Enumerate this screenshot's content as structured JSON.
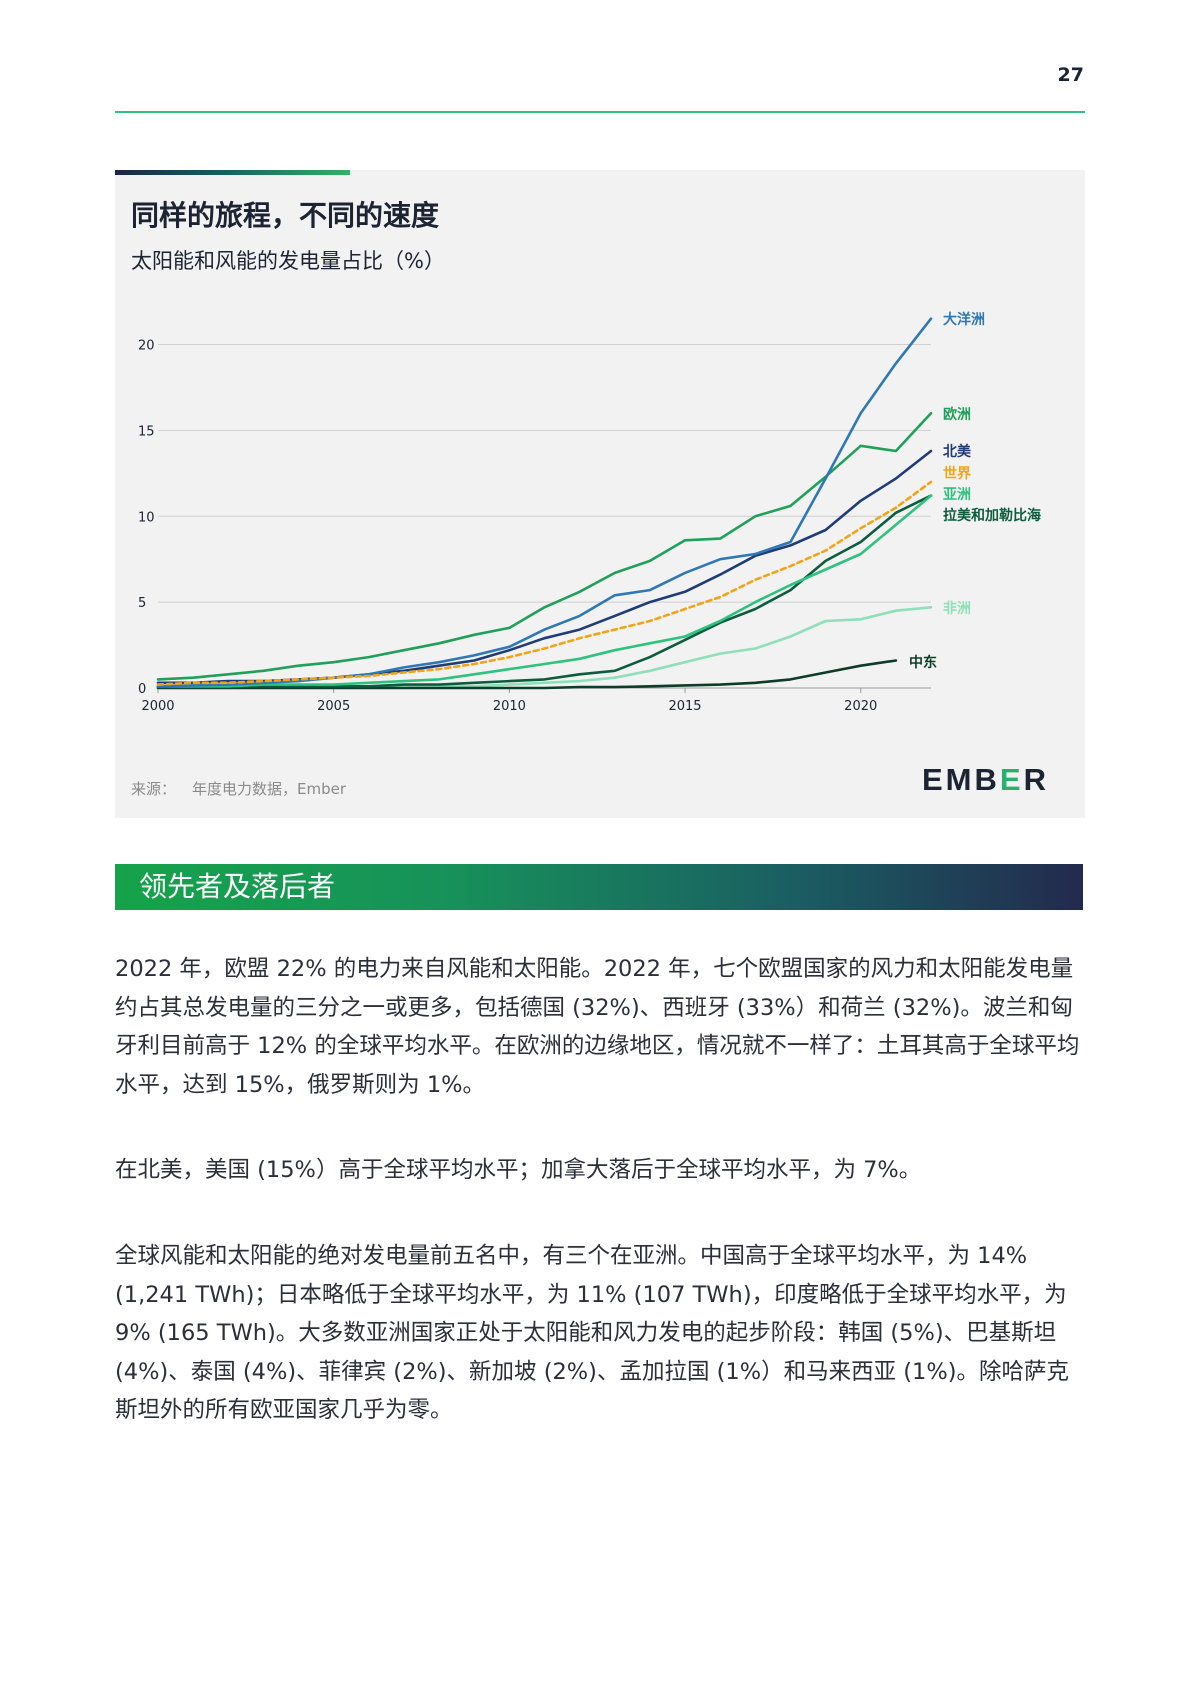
{
  "page": {
    "number": "27"
  },
  "figure": {
    "title": "同样的旅程，不同的速度",
    "subtitle": "太阳能和风能的发电量占比（%）",
    "source_label": "来源：",
    "source_text": "年度电力数据，Ember",
    "logo_text": "EMBER",
    "logo_prefix": "EMB",
    "logo_mid": "E",
    "logo_suffix": "R"
  },
  "chart_data": {
    "type": "line",
    "title": "同样的旅程，不同的速度",
    "subtitle": "太阳能和风能的发电量占比（%）",
    "xlabel": "",
    "ylabel": "",
    "xlim": [
      2000,
      2022
    ],
    "ylim": [
      0,
      22
    ],
    "x_ticks": [
      2000,
      2005,
      2010,
      2015,
      2020
    ],
    "y_ticks": [
      0,
      5,
      10,
      15,
      20
    ],
    "grid": true,
    "x": [
      2000,
      2001,
      2002,
      2003,
      2004,
      2005,
      2006,
      2007,
      2008,
      2009,
      2010,
      2011,
      2012,
      2013,
      2014,
      2015,
      2016,
      2017,
      2018,
      2019,
      2020,
      2021,
      2022
    ],
    "series": [
      {
        "name": "大洋洲",
        "color": "#2f78b5",
        "dashed": false,
        "values": [
          0.1,
          0.15,
          0.2,
          0.3,
          0.4,
          0.6,
          0.8,
          1.2,
          1.5,
          1.9,
          2.4,
          3.4,
          4.2,
          5.4,
          5.7,
          6.7,
          7.5,
          7.8,
          8.5,
          12.2,
          16.0,
          18.9,
          21.5
        ]
      },
      {
        "name": "欧洲",
        "color": "#20a05a",
        "dashed": false,
        "values": [
          0.5,
          0.6,
          0.8,
          1.0,
          1.3,
          1.5,
          1.8,
          2.2,
          2.6,
          3.1,
          3.5,
          4.7,
          5.6,
          6.7,
          7.4,
          8.6,
          8.7,
          10.0,
          10.6,
          12.3,
          14.1,
          13.8,
          16.0
        ]
      },
      {
        "name": "北美",
        "color": "#1f3c78",
        "dashed": false,
        "values": [
          0.3,
          0.3,
          0.4,
          0.4,
          0.5,
          0.6,
          0.8,
          1.0,
          1.3,
          1.6,
          2.2,
          2.9,
          3.4,
          4.2,
          5.0,
          5.6,
          6.6,
          7.7,
          8.3,
          9.2,
          10.9,
          12.2,
          13.8
        ]
      },
      {
        "name": "世界",
        "color": "#f2a416",
        "dashed": true,
        "values": [
          0.2,
          0.3,
          0.3,
          0.4,
          0.5,
          0.6,
          0.7,
          0.9,
          1.1,
          1.4,
          1.8,
          2.3,
          2.9,
          3.4,
          3.9,
          4.6,
          5.3,
          6.3,
          7.1,
          8.0,
          9.3,
          10.5,
          12.0
        ]
      },
      {
        "name": "亚洲",
        "color": "#2ec27e",
        "dashed": false,
        "values": [
          0.1,
          0.1,
          0.1,
          0.2,
          0.2,
          0.2,
          0.3,
          0.4,
          0.5,
          0.8,
          1.1,
          1.4,
          1.7,
          2.2,
          2.6,
          3.0,
          3.9,
          5.0,
          6.0,
          6.9,
          7.8,
          9.5,
          11.2
        ]
      },
      {
        "name": "拉美和加勒比海",
        "color": "#0d5c3f",
        "dashed": false,
        "values": [
          0.05,
          0.05,
          0.05,
          0.1,
          0.1,
          0.1,
          0.1,
          0.2,
          0.2,
          0.3,
          0.4,
          0.5,
          0.8,
          1.0,
          1.8,
          2.8,
          3.8,
          4.6,
          5.7,
          7.4,
          8.5,
          10.2,
          11.2
        ]
      },
      {
        "name": "非洲",
        "color": "#8fe0b8",
        "dashed": false,
        "values": [
          0.05,
          0.05,
          0.05,
          0.05,
          0.05,
          0.05,
          0.1,
          0.1,
          0.1,
          0.1,
          0.2,
          0.3,
          0.4,
          0.6,
          1.0,
          1.5,
          2.0,
          2.3,
          3.0,
          3.9,
          4.0,
          4.5,
          4.7
        ]
      },
      {
        "name": "中东",
        "color": "#0e3b2a",
        "dashed": false,
        "values": [
          0.0,
          0.0,
          0.0,
          0.0,
          0.0,
          0.0,
          0.0,
          0.0,
          0.0,
          0.0,
          0.0,
          0.0,
          0.05,
          0.05,
          0.1,
          0.15,
          0.2,
          0.3,
          0.5,
          0.9,
          1.3,
          1.6,
          null
        ]
      }
    ]
  },
  "section": {
    "title": "领先者及落后者"
  },
  "paragraphs": {
    "p1": "2022 年，欧盟 22% 的电力来自风能和太阳能。2022 年，七个欧盟国家的风力和太阳能发电量约占其总发电量的三分之一或更多，包括德国 (32%)、西班牙 (33%）和荷兰 (32%)。波兰和匈牙利目前高于 12% 的全球平均水平。在欧洲的边缘地区，情况就不一样了：土耳其高于全球平均水平，达到 15%，俄罗斯则为 1%。",
    "p2": "在北美，美国 (15%）高于全球平均水平；加拿大落后于全球平均水平，为 7%。",
    "p3": "全球风能和太阳能的绝对发电量前五名中，有三个在亚洲。中国高于全球平均水平，为 14% (1,241 TWh)；日本略低于全球平均水平，为 11% (107 TWh)，印度略低于全球平均水平，为 9% (165 TWh)。大多数亚洲国家正处于太阳能和风力发电的起步阶段：韩国 (5%)、巴基斯坦 (4%)、泰国 (4%)、菲律宾 (2%)、新加坡 (2%)、孟加拉国 (1%）和马来西亚 (1%)。除哈萨克斯坦外的所有欧亚国家几乎为零。"
  }
}
